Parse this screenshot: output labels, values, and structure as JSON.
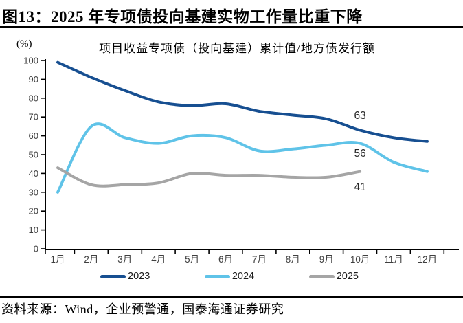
{
  "figure": {
    "title": "图13：2025 年专项债投向基建实物工作量比重下降",
    "source": "资料来源：Wind，企业预警通，国泰海通证券研究"
  },
  "chart_data": {
    "type": "line",
    "title": "项目收益专项债（投向基建）累计值/地方债发行额",
    "y_unit": "(%)",
    "xlabel": "",
    "ylabel": "",
    "ylim": [
      0,
      100
    ],
    "y_tick_step": 10,
    "grid": false,
    "legend_position": "bottom",
    "categories": [
      "1月",
      "2月",
      "3月",
      "4月",
      "5月",
      "6月",
      "7月",
      "8月",
      "9月",
      "10月",
      "11月",
      "12月"
    ],
    "series": [
      {
        "name": "2023",
        "color": "#174F91",
        "values": [
          99,
          91,
          84,
          78,
          76,
          77,
          73,
          71,
          69,
          63,
          59,
          57
        ]
      },
      {
        "name": "2024",
        "color": "#5FC3E8",
        "values": [
          30,
          65,
          59,
          56,
          60,
          59,
          52,
          53,
          55,
          56,
          46,
          41
        ]
      },
      {
        "name": "2025",
        "color": "#A5A5A5",
        "values": [
          43,
          34,
          34,
          35,
          40,
          39,
          39,
          38,
          38,
          41
        ]
      }
    ],
    "annotations": [
      {
        "text": "63",
        "month": "10月",
        "value_y": 71
      },
      {
        "text": "56",
        "month": "10月",
        "value_y": 51
      },
      {
        "text": "41",
        "month": "10月",
        "value_y": 33
      }
    ],
    "axis_color": "#000000",
    "tick_label_color": "#3f3f3f",
    "annotation_color": "#262626"
  }
}
